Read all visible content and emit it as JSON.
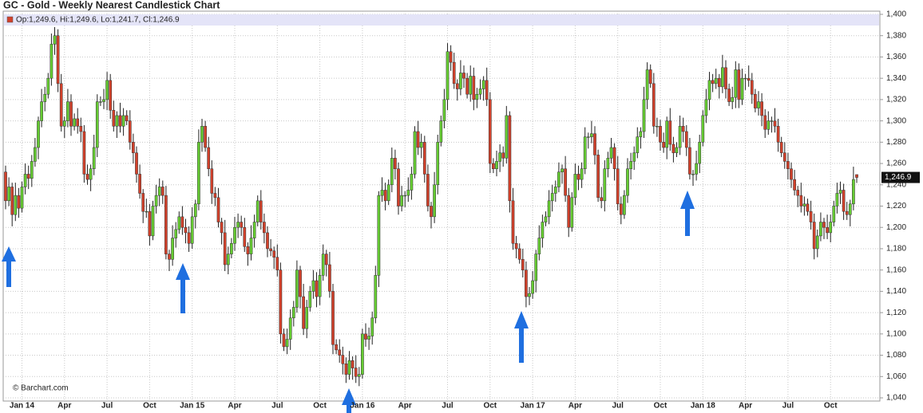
{
  "chart_data": {
    "type": "candlestick",
    "title": "GC - Gold - Weekly Nearest Candlestick Chart",
    "ohlc_label": "Op:1,249.6, Hi:1,249.6, Lo:1,241.7, Cl:1,246.9",
    "last_label": "1,246.9",
    "source": "© Barchart.com",
    "up_color": "#66cc33",
    "down_color": "#d2412b",
    "grid": true,
    "ylim": [
      1040,
      1400
    ],
    "yticks": [
      {
        "value": 1040,
        "label": "1,040"
      },
      {
        "value": 1060,
        "label": "1,060"
      },
      {
        "value": 1080,
        "label": "1,080"
      },
      {
        "value": 1100,
        "label": "1,100"
      },
      {
        "value": 1120,
        "label": "1,120"
      },
      {
        "value": 1140,
        "label": "1,140"
      },
      {
        "value": 1160,
        "label": "1,160"
      },
      {
        "value": 1180,
        "label": "1,180"
      },
      {
        "value": 1200,
        "label": "1,200"
      },
      {
        "value": 1220,
        "label": "1,220"
      },
      {
        "value": 1240,
        "label": "1,240"
      },
      {
        "value": 1260,
        "label": "1,260"
      },
      {
        "value": 1280,
        "label": "1,280"
      },
      {
        "value": 1300,
        "label": "1,300"
      },
      {
        "value": 1320,
        "label": "1,320"
      },
      {
        "value": 1340,
        "label": "1,340"
      },
      {
        "value": 1360,
        "label": "1,360"
      },
      {
        "value": 1380,
        "label": "1,380"
      },
      {
        "value": 1400,
        "label": "1,400"
      }
    ],
    "categories": [
      null,
      null,
      null,
      null,
      null,
      "Jan 14",
      null,
      null,
      null,
      null,
      null,
      null,
      null,
      null,
      null,
      null,
      null,
      null,
      "Apr",
      null,
      null,
      null,
      null,
      null,
      null,
      null,
      null,
      null,
      null,
      null,
      null,
      "Jul",
      null,
      null,
      null,
      null,
      null,
      null,
      null,
      null,
      null,
      null,
      null,
      null,
      "Oct",
      null,
      null,
      null,
      null,
      null,
      null,
      null,
      null,
      null,
      null,
      null,
      null,
      "Jan 15",
      null,
      null,
      null,
      null,
      null,
      null,
      null,
      null,
      null,
      null,
      null,
      null,
      "Apr",
      null,
      null,
      null,
      null,
      null,
      null,
      null,
      null,
      null,
      null,
      null,
      null,
      "Jul",
      null,
      null,
      null,
      null,
      null,
      null,
      null,
      null,
      null,
      null,
      null,
      null,
      "Oct",
      null,
      null,
      null,
      null,
      null,
      null,
      null,
      null,
      null,
      null,
      null,
      null,
      "Jan 16",
      null,
      null,
      null,
      null,
      null,
      null,
      null,
      null,
      null,
      null,
      null,
      null,
      "Apr",
      null,
      null,
      null,
      null,
      null,
      null,
      null,
      null,
      null,
      null,
      null,
      null,
      "Jul",
      null,
      null,
      null,
      null,
      null,
      null,
      null,
      null,
      null,
      null,
      null,
      null,
      "Oct",
      null,
      null,
      null,
      null,
      null,
      null,
      null,
      null,
      null,
      null,
      null,
      null,
      "Jan 17",
      null,
      null,
      null,
      null,
      null,
      null,
      null,
      null,
      null,
      null,
      null,
      null,
      "Apr",
      null,
      null,
      null,
      null,
      null,
      null,
      null,
      null,
      null,
      null,
      null,
      null,
      "Jul",
      null,
      null,
      null,
      null,
      null,
      null,
      null,
      null,
      null,
      null,
      null,
      null,
      "Oct",
      null,
      null,
      null,
      null,
      null,
      null,
      null,
      null,
      null,
      null,
      null,
      null,
      "Jan 18",
      null,
      null,
      null,
      null,
      null,
      null,
      null,
      null,
      null,
      null,
      null,
      null,
      "Apr",
      null,
      null,
      null,
      null,
      null,
      null,
      null,
      null,
      null,
      null,
      null,
      null,
      "Jul",
      null,
      null,
      null,
      null,
      null,
      null,
      null,
      null,
      null,
      null,
      null,
      null,
      "Oct",
      null,
      null,
      null,
      null,
      null,
      null,
      null,
      null
    ],
    "open": [
      1252,
      1225,
      1238,
      1212,
      1230,
      1218,
      1238,
      1250,
      1246,
      1262,
      1275,
      1300,
      1318,
      1325,
      1340,
      1372,
      1380,
      1335,
      1295,
      1300,
      1318,
      1295,
      1302,
      1295,
      1290,
      1250,
      1245,
      1255,
      1275,
      1318,
      1318,
      1320,
      1338,
      1310,
      1295,
      1305,
      1295,
      1305,
      1300,
      1280,
      1270,
      1250,
      1232,
      1215,
      1215,
      1192,
      1220,
      1230,
      1238,
      1230,
      1175,
      1170,
      1190,
      1198,
      1210,
      1200,
      1195,
      1185,
      1210,
      1222,
      1280,
      1295,
      1275,
      1255,
      1232,
      1228,
      1205,
      1195,
      1165,
      1175,
      1185,
      1200,
      1205,
      1200,
      1182,
      1175,
      1190,
      1205,
      1225,
      1205,
      1195,
      1180,
      1178,
      1172,
      1160,
      1100,
      1088,
      1095,
      1115,
      1125,
      1160,
      1135,
      1105,
      1125,
      1140,
      1150,
      1135,
      1155,
      1175,
      1165,
      1140,
      1090,
      1085,
      1080,
      1072,
      1062,
      1075,
      1068,
      1060,
      1062,
      1100,
      1095,
      1098,
      1115,
      1155,
      1230,
      1235,
      1225,
      1240,
      1265,
      1255,
      1220,
      1230,
      1230,
      1235,
      1250,
      1290,
      1275,
      1280,
      1250,
      1220,
      1210,
      1240,
      1280,
      1300,
      1320,
      1365,
      1355,
      1335,
      1330,
      1345,
      1340,
      1325,
      1342,
      1320,
      1325,
      1330,
      1338,
      1320,
      1260,
      1255,
      1262,
      1270,
      1265,
      1305,
      1225,
      1185,
      1180,
      1170,
      1160,
      1135,
      1138,
      1150,
      1175,
      1190,
      1205,
      1210,
      1225,
      1232,
      1238,
      1252,
      1255,
      1230,
      1200,
      1228,
      1250,
      1245,
      1255,
      1285,
      1285,
      1288,
      1268,
      1228,
      1225,
      1255,
      1265,
      1275,
      1255,
      1222,
      1212,
      1230,
      1255,
      1262,
      1270,
      1285,
      1290,
      1320,
      1348,
      1335,
      1295,
      1295,
      1280,
      1275,
      1300,
      1278,
      1270,
      1275,
      1295,
      1290,
      1275,
      1250,
      1250,
      1260,
      1280,
      1305,
      1320,
      1338,
      1335,
      1340,
      1332,
      1350,
      1330,
      1318,
      1322,
      1348,
      1320,
      1340,
      1340,
      1338,
      1325,
      1312,
      1318,
      1305,
      1292,
      1300,
      1300,
      1295,
      1280,
      1270,
      1262,
      1255,
      1245,
      1235,
      1230,
      1220,
      1222,
      1215,
      1205,
      1180,
      1192,
      1205,
      1200,
      1195,
      1205,
      1220,
      1232,
      1235,
      1215,
      1212,
      1222,
      1249.6
    ],
    "high": [
      1258,
      1247,
      1242,
      1242,
      1237,
      1243,
      1260,
      1258,
      1268,
      1284,
      1304,
      1330,
      1332,
      1345,
      1382,
      1388,
      1386,
      1344,
      1304,
      1330,
      1325,
      1307,
      1312,
      1303,
      1296,
      1259,
      1259,
      1287,
      1325,
      1323,
      1330,
      1346,
      1344,
      1319,
      1309,
      1317,
      1312,
      1310,
      1310,
      1288,
      1276,
      1259,
      1236,
      1227,
      1222,
      1225,
      1240,
      1246,
      1244,
      1239,
      1179,
      1202,
      1205,
      1215,
      1220,
      1208,
      1201,
      1219,
      1226,
      1292,
      1302,
      1300,
      1285,
      1263,
      1238,
      1237,
      1209,
      1207,
      1182,
      1190,
      1210,
      1213,
      1211,
      1209,
      1186,
      1202,
      1212,
      1230,
      1235,
      1213,
      1201,
      1189,
      1182,
      1184,
      1167,
      1105,
      1105,
      1123,
      1131,
      1169,
      1164,
      1147,
      1132,
      1145,
      1160,
      1158,
      1161,
      1184,
      1179,
      1177,
      1147,
      1095,
      1095,
      1088,
      1078,
      1084,
      1079,
      1080,
      1069,
      1105,
      1110,
      1106,
      1121,
      1164,
      1234,
      1247,
      1242,
      1245,
      1275,
      1273,
      1261,
      1239,
      1234,
      1247,
      1257,
      1295,
      1300,
      1288,
      1286,
      1259,
      1224,
      1252,
      1287,
      1305,
      1330,
      1373,
      1371,
      1364,
      1339,
      1357,
      1352,
      1345,
      1352,
      1350,
      1331,
      1339,
      1342,
      1350,
      1327,
      1265,
      1272,
      1278,
      1276,
      1314,
      1309,
      1237,
      1192,
      1185,
      1180,
      1168,
      1144,
      1159,
      1179,
      1202,
      1212,
      1215,
      1235,
      1240,
      1244,
      1261,
      1259,
      1267,
      1237,
      1233,
      1260,
      1258,
      1261,
      1294,
      1289,
      1300,
      1295,
      1273,
      1238,
      1263,
      1271,
      1284,
      1279,
      1267,
      1229,
      1235,
      1265,
      1270,
      1276,
      1294,
      1294,
      1332,
      1355,
      1353,
      1345,
      1303,
      1301,
      1289,
      1304,
      1312,
      1285,
      1280,
      1305,
      1303,
      1296,
      1284,
      1254,
      1272,
      1287,
      1310,
      1330,
      1346,
      1344,
      1349,
      1344,
      1362,
      1357,
      1335,
      1332,
      1356,
      1354,
      1349,
      1344,
      1352,
      1345,
      1330,
      1328,
      1326,
      1311,
      1309,
      1304,
      1312,
      1302,
      1285,
      1280,
      1270,
      1261,
      1254,
      1239,
      1242,
      1229,
      1227,
      1225,
      1213,
      1198,
      1214,
      1209,
      1212,
      1212,
      1225,
      1242,
      1243,
      1241,
      1224,
      1226,
      1257,
      1249.6
    ],
    "low": [
      1217,
      1220,
      1201,
      1206,
      1209,
      1214,
      1231,
      1236,
      1238,
      1257,
      1264,
      1294,
      1309,
      1321,
      1333,
      1362,
      1327,
      1290,
      1284,
      1294,
      1286,
      1291,
      1288,
      1280,
      1242,
      1240,
      1234,
      1249,
      1266,
      1314,
      1311,
      1310,
      1302,
      1290,
      1284,
      1289,
      1286,
      1296,
      1273,
      1260,
      1242,
      1227,
      1204,
      1209,
      1183,
      1188,
      1213,
      1220,
      1222,
      1170,
      1159,
      1164,
      1181,
      1194,
      1193,
      1185,
      1177,
      1180,
      1199,
      1216,
      1271,
      1271,
      1248,
      1222,
      1220,
      1200,
      1184,
      1159,
      1156,
      1171,
      1178,
      1190,
      1192,
      1177,
      1164,
      1169,
      1181,
      1201,
      1198,
      1185,
      1172,
      1173,
      1161,
      1154,
      1091,
      1084,
      1081,
      1085,
      1107,
      1120,
      1124,
      1099,
      1096,
      1121,
      1133,
      1125,
      1127,
      1150,
      1154,
      1134,
      1081,
      1081,
      1073,
      1062,
      1054,
      1057,
      1057,
      1054,
      1051,
      1058,
      1088,
      1085,
      1090,
      1110,
      1144,
      1224,
      1216,
      1221,
      1233,
      1245,
      1212,
      1215,
      1219,
      1224,
      1226,
      1246,
      1268,
      1265,
      1242,
      1215,
      1199,
      1204,
      1231,
      1276,
      1293,
      1310,
      1347,
      1330,
      1319,
      1324,
      1331,
      1321,
      1318,
      1310,
      1312,
      1320,
      1319,
      1314,
      1251,
      1251,
      1248,
      1252,
      1257,
      1260,
      1214,
      1179,
      1171,
      1166,
      1153,
      1125,
      1127,
      1133,
      1139,
      1169,
      1181,
      1201,
      1203,
      1215,
      1224,
      1233,
      1241,
      1224,
      1191,
      1196,
      1221,
      1235,
      1237,
      1250,
      1274,
      1279,
      1259,
      1224,
      1218,
      1215,
      1247,
      1260,
      1244,
      1216,
      1203,
      1208,
      1223,
      1245,
      1254,
      1265,
      1274,
      1284,
      1311,
      1331,
      1288,
      1285,
      1272,
      1270,
      1264,
      1272,
      1261,
      1266,
      1268,
      1280,
      1267,
      1245,
      1239,
      1244,
      1251,
      1276,
      1298,
      1310,
      1327,
      1330,
      1321,
      1326,
      1321,
      1314,
      1311,
      1312,
      1312,
      1315,
      1329,
      1332,
      1316,
      1308,
      1305,
      1295,
      1284,
      1287,
      1289,
      1289,
      1271,
      1266,
      1255,
      1245,
      1237,
      1230,
      1219,
      1214,
      1211,
      1211,
      1198,
      1170,
      1172,
      1187,
      1189,
      1189,
      1186,
      1201,
      1213,
      1222,
      1207,
      1207,
      1201,
      1216,
      1241.7
    ],
    "close": [
      1225,
      1238,
      1212,
      1230,
      1218,
      1238,
      1250,
      1246,
      1262,
      1275,
      1300,
      1318,
      1325,
      1340,
      1372,
      1380,
      1335,
      1295,
      1300,
      1318,
      1295,
      1302,
      1295,
      1290,
      1250,
      1245,
      1255,
      1275,
      1318,
      1318,
      1320,
      1338,
      1310,
      1295,
      1305,
      1295,
      1305,
      1300,
      1280,
      1270,
      1250,
      1232,
      1215,
      1215,
      1192,
      1220,
      1230,
      1238,
      1230,
      1175,
      1170,
      1190,
      1198,
      1210,
      1200,
      1195,
      1185,
      1210,
      1222,
      1280,
      1295,
      1275,
      1255,
      1232,
      1228,
      1205,
      1195,
      1165,
      1175,
      1185,
      1200,
      1205,
      1200,
      1182,
      1175,
      1190,
      1205,
      1225,
      1205,
      1195,
      1180,
      1178,
      1172,
      1160,
      1100,
      1088,
      1095,
      1115,
      1125,
      1160,
      1135,
      1105,
      1125,
      1140,
      1150,
      1135,
      1155,
      1175,
      1165,
      1140,
      1090,
      1085,
      1080,
      1072,
      1062,
      1075,
      1068,
      1060,
      1062,
      1100,
      1095,
      1098,
      1115,
      1155,
      1230,
      1235,
      1225,
      1240,
      1265,
      1255,
      1220,
      1230,
      1230,
      1235,
      1250,
      1290,
      1275,
      1280,
      1250,
      1220,
      1210,
      1240,
      1280,
      1300,
      1320,
      1365,
      1355,
      1335,
      1330,
      1345,
      1340,
      1325,
      1342,
      1320,
      1325,
      1330,
      1338,
      1320,
      1260,
      1255,
      1262,
      1270,
      1265,
      1305,
      1225,
      1185,
      1180,
      1170,
      1160,
      1135,
      1138,
      1150,
      1175,
      1190,
      1205,
      1210,
      1225,
      1232,
      1238,
      1252,
      1255,
      1230,
      1200,
      1228,
      1250,
      1245,
      1255,
      1285,
      1285,
      1288,
      1268,
      1228,
      1225,
      1255,
      1265,
      1275,
      1255,
      1222,
      1212,
      1230,
      1255,
      1262,
      1270,
      1285,
      1290,
      1320,
      1348,
      1335,
      1295,
      1295,
      1280,
      1275,
      1300,
      1278,
      1270,
      1275,
      1295,
      1290,
      1275,
      1250,
      1250,
      1260,
      1280,
      1305,
      1320,
      1338,
      1335,
      1340,
      1332,
      1350,
      1330,
      1318,
      1322,
      1348,
      1320,
      1340,
      1340,
      1338,
      1325,
      1312,
      1318,
      1305,
      1292,
      1300,
      1300,
      1295,
      1280,
      1270,
      1262,
      1255,
      1245,
      1235,
      1230,
      1220,
      1222,
      1215,
      1205,
      1180,
      1192,
      1205,
      1200,
      1195,
      1205,
      1220,
      1232,
      1235,
      1215,
      1212,
      1222,
      1245,
      1246.9
    ]
  }
}
